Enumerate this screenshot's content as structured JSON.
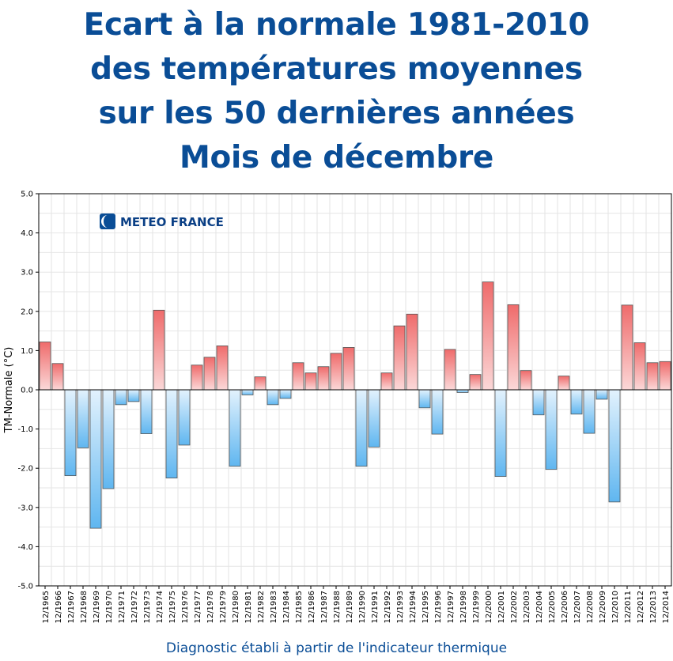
{
  "title_lines": [
    "Ecart à la normale 1981-2010",
    "des températures moyennes",
    "sur les 50 dernières années",
    "Mois de décembre"
  ],
  "footer": "Diagnostic établi à partir de l'indicateur thermique",
  "logo": {
    "text": "METEO FRANCE"
  },
  "colors": {
    "title": "#0a4d96",
    "positive": "#f08080",
    "negative": "#7cc4f4"
  },
  "chart_data": {
    "type": "bar",
    "title": "",
    "xlabel": "",
    "ylabel": "TM-Normale (°C)",
    "ylim": [
      -5,
      5
    ],
    "yticks": [
      "5.0",
      "4.0",
      "3.0",
      "2.0",
      "1.0",
      "0.0",
      "-1.0",
      "-2.0",
      "-3.0",
      "-4.0",
      "-5.0"
    ],
    "grid": true,
    "categories": [
      "12/1965",
      "12/1966",
      "12/1967",
      "12/1968",
      "12/1969",
      "12/1970",
      "12/1971",
      "12/1972",
      "12/1973",
      "12/1974",
      "12/1975",
      "12/1976",
      "12/1977",
      "12/1978",
      "12/1979",
      "12/1980",
      "12/1981",
      "12/1982",
      "12/1983",
      "12/1984",
      "12/1985",
      "12/1986",
      "12/1987",
      "12/1988",
      "12/1989",
      "12/1990",
      "12/1991",
      "12/1992",
      "12/1993",
      "12/1994",
      "12/1995",
      "12/1996",
      "12/1997",
      "12/1998",
      "12/1999",
      "12/2000",
      "12/2001",
      "12/2002",
      "12/2003",
      "12/2004",
      "12/2005",
      "12/2006",
      "12/2007",
      "12/2008",
      "12/2009",
      "12/2010",
      "12/2011",
      "12/2012",
      "12/2013",
      "12/2014"
    ],
    "values": [
      1.22,
      0.67,
      -2.19,
      -1.48,
      -3.53,
      -2.52,
      -0.38,
      -0.3,
      -1.12,
      2.03,
      -2.25,
      -1.41,
      0.63,
      0.83,
      1.12,
      -1.95,
      -0.13,
      0.33,
      -0.38,
      -0.22,
      0.69,
      0.43,
      0.59,
      0.93,
      1.08,
      -1.95,
      -1.46,
      0.43,
      1.63,
      1.93,
      -0.46,
      -1.13,
      1.03,
      -0.07,
      0.39,
      2.75,
      -2.21,
      2.17,
      0.49,
      -0.64,
      -2.03,
      0.35,
      -0.62,
      -1.11,
      -0.24,
      -2.86,
      2.16,
      1.2,
      0.69,
      0.72
    ]
  }
}
